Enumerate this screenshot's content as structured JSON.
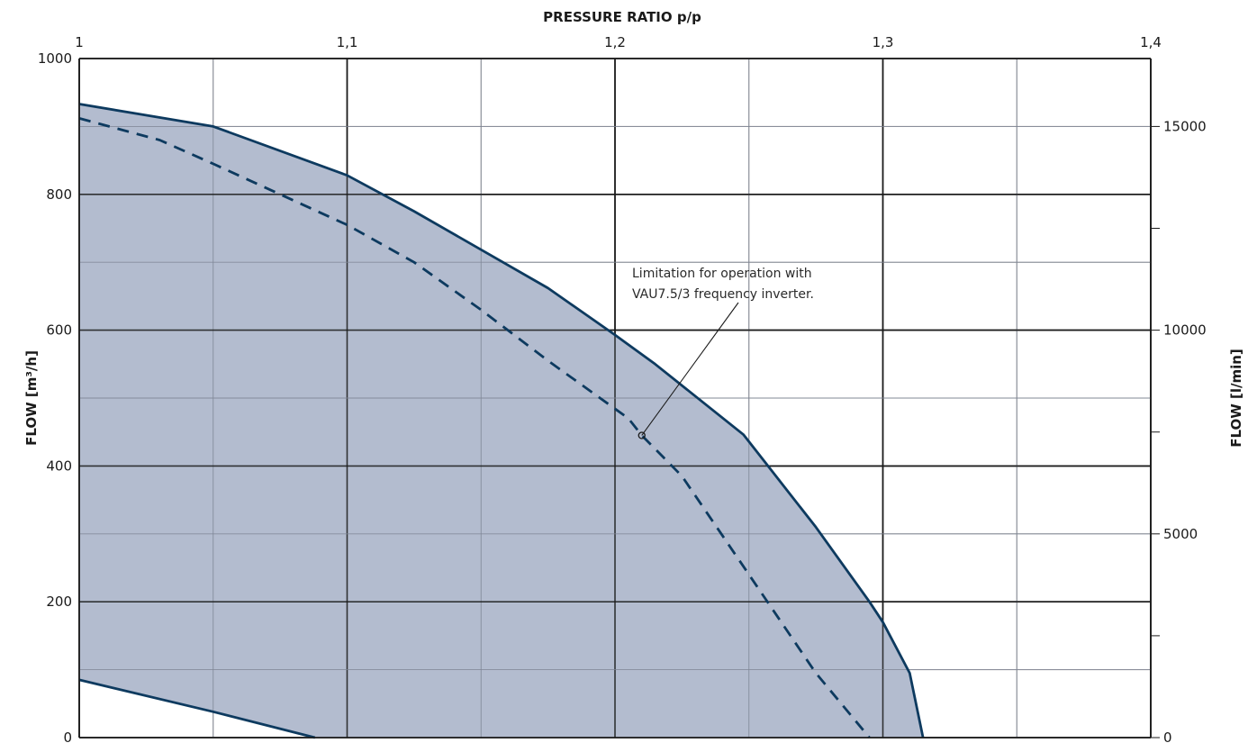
{
  "chart_data": {
    "type": "area",
    "title": "",
    "x_axis": {
      "label": "PRESSURE RATIO  p/p",
      "position": "top",
      "range": [
        1.0,
        1.4
      ],
      "ticks": [
        1.0,
        1.1,
        1.2,
        1.3,
        1.4
      ],
      "tick_labels": [
        "1",
        "1,1",
        "1,2",
        "1,3",
        "1,4"
      ],
      "minor_step": 0.05
    },
    "y_axis_left": {
      "label": "FLOW [m³/h]",
      "range": [
        0,
        1000
      ],
      "ticks": [
        0,
        200,
        400,
        600,
        800,
        1000
      ],
      "tick_labels": [
        "0",
        "200",
        "400",
        "600",
        "800",
        "1000"
      ],
      "minor_step": 100
    },
    "y_axis_right": {
      "label": "FLOW [l/min]",
      "range": [
        0,
        16667
      ],
      "ticks": [
        0,
        5000,
        10000,
        15000
      ],
      "tick_labels": [
        "0",
        "5000",
        "10000",
        "15000"
      ],
      "minor_step": 2500
    },
    "grid": true,
    "fill_color": "#b3bccf",
    "line_color": "#0d3a5f",
    "series": [
      {
        "style": "solid",
        "x": [
          1.0,
          1.05,
          1.1,
          1.125,
          1.175,
          1.2,
          1.215,
          1.248,
          1.275,
          1.295,
          1.3,
          1.31,
          1.315
        ],
        "y": [
          933,
          900,
          828,
          775,
          662,
          593,
          550,
          446,
          310,
          200,
          170,
          95,
          0
        ]
      },
      {
        "style": "dashed",
        "x": [
          1.0,
          1.03,
          1.05,
          1.1,
          1.125,
          1.15,
          1.175,
          1.205,
          1.21,
          1.225,
          1.25,
          1.275,
          1.295
        ],
        "y": [
          912,
          880,
          845,
          755,
          700,
          630,
          555,
          470,
          445,
          385,
          240,
          95,
          0
        ]
      },
      {
        "style": "solid",
        "x": [
          1.0,
          1.05,
          1.088
        ],
        "y": [
          85,
          38,
          0
        ]
      }
    ],
    "annotations": [
      {
        "text_lines": [
          "Limitation for operation with",
          "VAU7.5/3 frequency inverter."
        ],
        "point": [
          1.21,
          445
        ]
      }
    ]
  }
}
